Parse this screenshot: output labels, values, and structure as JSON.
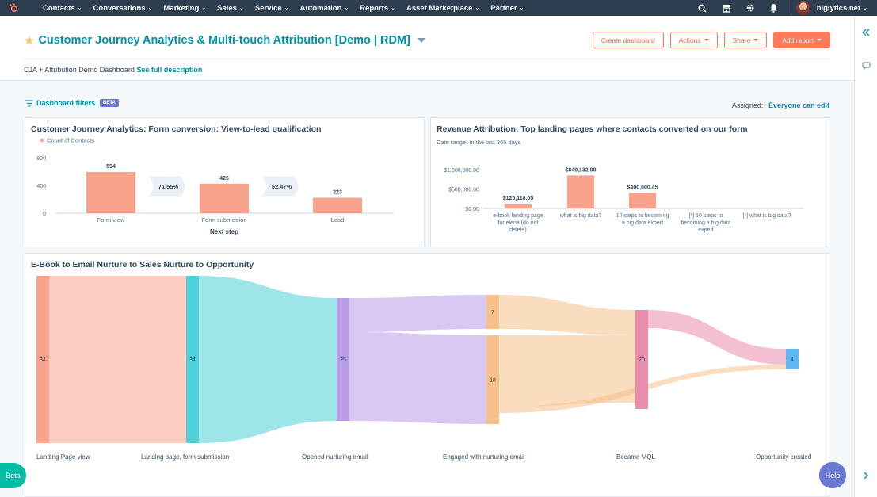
{
  "nav": {
    "items": [
      "Contacts",
      "Conversations",
      "Marketing",
      "Sales",
      "Service",
      "Automation",
      "Reports",
      "Asset Marketplace",
      "Partner"
    ],
    "account": "biglytics.net"
  },
  "header": {
    "title": "Customer Journey Analytics & Multi-touch Attribution [Demo | RDM]",
    "buttons": {
      "create_dashboard": "Create dashboard",
      "actions": "Actions",
      "share": "Share",
      "add_report": "Add report"
    },
    "description": "CJA + Attribution Demo Dashboard",
    "see_description": "See full description"
  },
  "filters": {
    "label": "Dashboard filters",
    "badge": "BETA",
    "assigned_label": "Assigned:",
    "assigned_value": "Everyone can edit"
  },
  "charts": {
    "funnel": {
      "title": "Customer Journey Analytics: Form conversion: View-to-lead qualification",
      "legend": "Count of Contacts",
      "xlabel": "Next step"
    },
    "attribution": {
      "title": "Revenue Attribution: Top landing pages where contacts converted on our form",
      "subtitle": "Date range: In the last 365 days"
    },
    "sankey": {
      "title": "E-Book to Email Nurture to Sales Nurture to Opportunity"
    }
  },
  "chart_data": [
    {
      "type": "bar",
      "title": "Customer Journey Analytics: Form conversion: View-to-lead qualification",
      "xlabel": "Next step",
      "categories": [
        "Form view",
        "Form submission",
        "Lead"
      ],
      "series": [
        {
          "name": "Count of Contacts",
          "values": [
            594,
            425,
            223
          ]
        }
      ],
      "conversion_rates": [
        "71.55%",
        "52.47%"
      ],
      "ylim": [
        0,
        800
      ],
      "yticks": [
        "0",
        "400",
        "800"
      ],
      "color": "#f8a38c"
    },
    {
      "type": "bar",
      "title": "Revenue Attribution: Top landing pages where contacts converted on our form",
      "subtitle": "Date range: In the last 365 days",
      "categories": [
        [
          "e-book landing page",
          "for elena (do not",
          "delete)"
        ],
        [
          "what is big data?"
        ],
        [
          "10 steps to becoming",
          "a big data expert"
        ],
        [
          "[*] 10 steps to",
          "becoming a big data",
          "expert"
        ],
        [
          "[*] what is big data?"
        ]
      ],
      "values": [
        125118.05,
        849132.0,
        400000.45,
        0,
        0
      ],
      "value_labels": [
        "$125,118.05",
        "$849,132.00",
        "$400,000.45",
        "",
        ""
      ],
      "ylim": [
        0,
        1000000
      ],
      "yticks": [
        "$0.00",
        "$500,000.00",
        "$1,000,000.00"
      ],
      "color": "#f8a38c"
    },
    {
      "type": "sankey",
      "title": "E-Book to Email Nurture to Sales Nurture to Opportunity",
      "stages": [
        "Landing Page view",
        "Landing page, form submission",
        "Opened nurturing email",
        "Engaged with nurturing email",
        "Became MQL",
        "Opportunity created"
      ],
      "nodes": [
        {
          "stage": 0,
          "value": 34,
          "color": "#f8a38c"
        },
        {
          "stage": 1,
          "value": 34,
          "color": "#4fd0d8"
        },
        {
          "stage": 2,
          "value": 25,
          "color": "#b99be8"
        },
        {
          "stage": 3,
          "value": 7,
          "color": "#f5c08a"
        },
        {
          "stage": 3,
          "value": 18,
          "color": "#f5c08a"
        },
        {
          "stage": 4,
          "value": 20,
          "color": "#e98dad"
        },
        {
          "stage": 5,
          "value": 4,
          "color": "#5fb6f5"
        }
      ],
      "links": [
        {
          "from": 0,
          "to": 1,
          "value": 34
        },
        {
          "from": 1,
          "to": 2,
          "value": 25
        },
        {
          "from": 2,
          "to": 3,
          "value": 7
        },
        {
          "from": 2,
          "to": 4,
          "value": 18
        },
        {
          "from": 3,
          "to": 5,
          "value": 7
        },
        {
          "from": 4,
          "to": 5,
          "value": 13
        },
        {
          "from": 4,
          "to": 6,
          "value": 1
        },
        {
          "from": 5,
          "to": 6,
          "value": 3
        }
      ]
    }
  ],
  "floating": {
    "beta": "Beta",
    "help": "Help"
  }
}
